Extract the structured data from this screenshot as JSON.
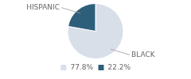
{
  "chart_data": {
    "type": "pie",
    "categories": [
      "BLACK",
      "HISPANIC"
    ],
    "values": [
      77.8,
      22.2
    ],
    "value_labels": [
      "77.8%",
      "22.2%"
    ],
    "colors": [
      "#d9dfe8",
      "#2e5f7a"
    ],
    "legend": "bottom"
  }
}
